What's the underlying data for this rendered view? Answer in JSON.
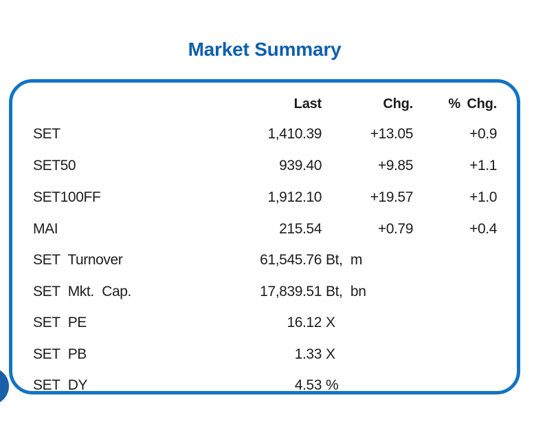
{
  "page": {
    "title": "Market Summary"
  },
  "colors": {
    "accent_border_blue": "#1274c2",
    "title_blue": "#0d5fad",
    "corner_circle_blue": "#1a5fa8",
    "text": "#1c1c1c"
  },
  "table": {
    "headers": {
      "last": "Last",
      "chg": "Chg.",
      "pct_chg": "% Chg."
    },
    "rows": [
      {
        "label": "SET",
        "last": "1,410.39",
        "unit": "",
        "chg": "+13.05",
        "pct_chg": "+0.9"
      },
      {
        "label": "SET50",
        "last": "939.40",
        "unit": "",
        "chg": "+9.85",
        "pct_chg": "+1.1"
      },
      {
        "label": "SET100FF",
        "last": "1,912.10",
        "unit": "",
        "chg": "+19.57",
        "pct_chg": "+1.0"
      },
      {
        "label": "MAI",
        "last": "215.54",
        "unit": "",
        "chg": "+0.79",
        "pct_chg": "+0.4"
      },
      {
        "label": "SET Turnover",
        "last": "61,545.76",
        "unit": "Bt, m",
        "chg": "",
        "pct_chg": ""
      },
      {
        "label": "SET Mkt. Cap.",
        "last": "17,839.51",
        "unit": "Bt, bn",
        "chg": "",
        "pct_chg": ""
      },
      {
        "label": "SET PE",
        "last": "16.12",
        "unit": "X",
        "chg": "",
        "pct_chg": ""
      },
      {
        "label": "SET PB",
        "last": "1.33",
        "unit": "X",
        "chg": "",
        "pct_chg": ""
      },
      {
        "label": "SET DY",
        "last": "4.53",
        "unit": "%",
        "chg": "",
        "pct_chg": ""
      }
    ]
  }
}
